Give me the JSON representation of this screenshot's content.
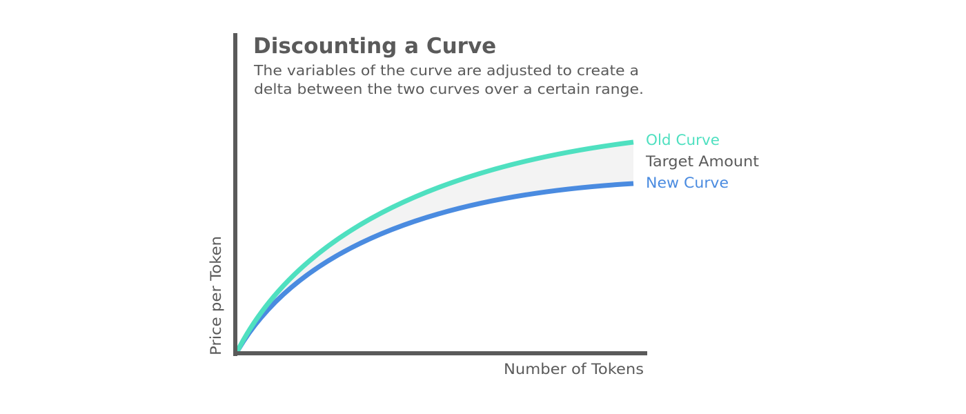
{
  "title": "Discounting a Curve",
  "subtitle_lines": [
    "The variables of the curve are adjusted to create a",
    "delta between the two curves over a certain range."
  ],
  "axes": {
    "x_label": "Number of Tokens",
    "y_label": "Price per Token"
  },
  "curves": {
    "old": {
      "label": "Old Curve",
      "color": "#4fe0c0"
    },
    "new": {
      "label": "New Curve",
      "color": "#4a8be0"
    }
  },
  "delta": {
    "label": "Target Amount",
    "fill_color": "#f3f3f3"
  },
  "colors": {
    "axis": "#5a5a5a",
    "text": "#5a5a5a"
  }
}
